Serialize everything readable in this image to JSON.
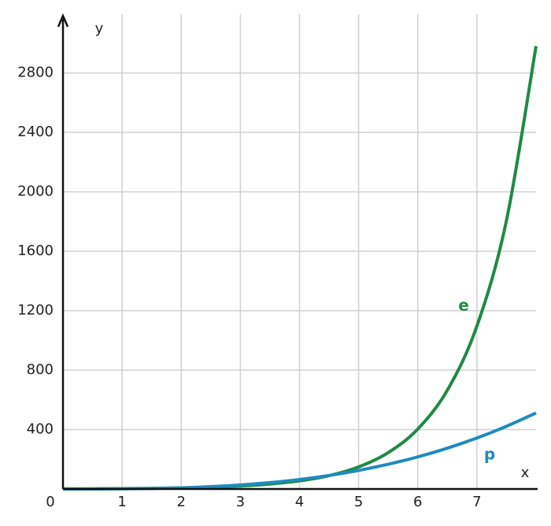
{
  "chart_data": {
    "type": "line",
    "x": [
      0,
      0.5,
      1,
      1.5,
      2,
      2.5,
      3,
      3.5,
      4,
      4.5,
      5,
      5.5,
      6,
      6.5,
      7,
      7.5,
      8
    ],
    "series": [
      {
        "name": "e",
        "color": "#1e8a44",
        "values": [
          1,
          1.6,
          2.7,
          4.5,
          7.4,
          12.2,
          20.1,
          33.1,
          54.6,
          90.0,
          148.4,
          244.7,
          403.4,
          665.1,
          1096.6,
          1808.0,
          2981.0
        ]
      },
      {
        "name": "p",
        "color": "#1f8bbf",
        "values": [
          0,
          0.1,
          1,
          3.4,
          8,
          15.6,
          27,
          42.9,
          64,
          91.1,
          125,
          166.4,
          216,
          274.6,
          343,
          421.9,
          512
        ]
      }
    ],
    "x_label": "x",
    "y_label": "y",
    "xlim": [
      0,
      8
    ],
    "ylim": [
      0,
      3180
    ],
    "xticks": [
      0,
      1,
      2,
      3,
      4,
      5,
      6,
      7
    ],
    "yticks": [
      400,
      800,
      1200,
      1600,
      2000,
      2400,
      2800
    ],
    "grid": true
  }
}
